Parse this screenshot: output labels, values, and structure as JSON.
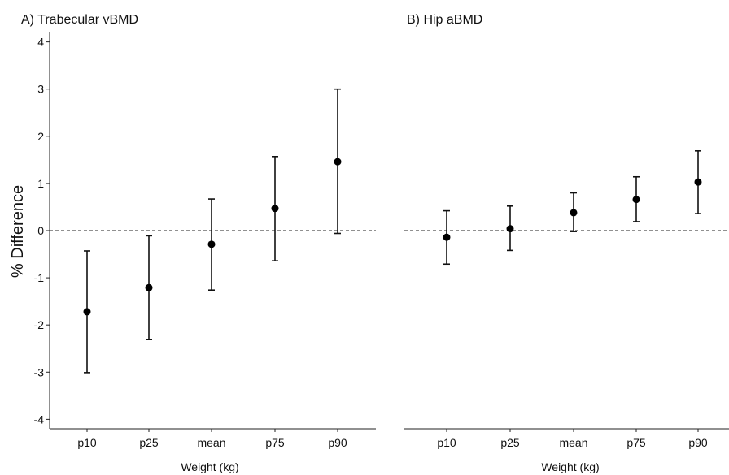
{
  "chart_data": [
    {
      "type": "scatter",
      "title": "A) Trabecular vBMD",
      "xlabel": "Weight (kg)",
      "ylabel": "% Difference",
      "categories": [
        "p10",
        "p25",
        "mean",
        "p75",
        "p90"
      ],
      "values": [
        -1.72,
        -1.21,
        -0.29,
        0.47,
        1.46
      ],
      "lower": [
        -3.01,
        -2.31,
        -1.26,
        -0.64,
        -0.06
      ],
      "upper": [
        -0.43,
        -0.11,
        0.67,
        1.57,
        3.0
      ],
      "ylim": [
        -4.2,
        4.2
      ],
      "yticks": [
        "-4",
        "-3",
        "-2",
        "-1",
        "0",
        "1",
        "2",
        "3",
        "4"
      ],
      "reference_line": 0,
      "grid": false
    },
    {
      "type": "scatter",
      "title": "B) Hip aBMD",
      "xlabel": "Weight (kg)",
      "ylabel": "",
      "categories": [
        "p10",
        "p25",
        "mean",
        "p75",
        "p90"
      ],
      "values": [
        -0.14,
        0.04,
        0.38,
        0.66,
        1.03
      ],
      "lower": [
        -0.71,
        -0.42,
        -0.02,
        0.19,
        0.36
      ],
      "upper": [
        0.42,
        0.52,
        0.8,
        1.14,
        1.69
      ],
      "ylim": [
        -4.2,
        4.2
      ],
      "reference_line": 0,
      "grid": false
    }
  ]
}
